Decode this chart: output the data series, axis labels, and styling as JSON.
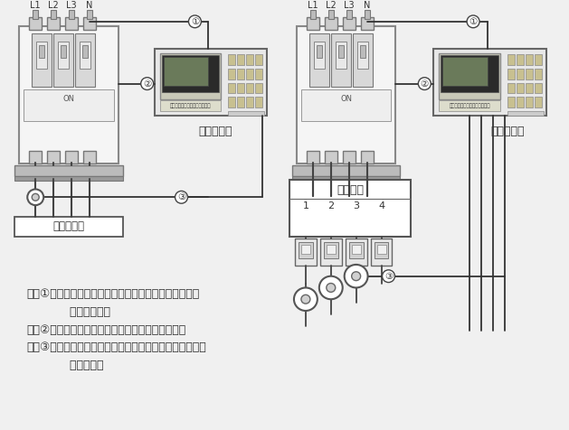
{
  "bg_color": "#f0f0f0",
  "fig_width": 6.29,
  "fig_height": 4.76,
  "text_color": "#333333",
  "line_color": "#444444",
  "description_lines": [
    "回路①：连接在配电进线端一条火线与零线之间，实现对",
    "            探测器的供电",
    "回路②：连接在分离脱才器的控制端，实现脱才控制",
    "回路③：互感器回路，将其连接在监控线路所通过的剩余电",
    "            流互感器上"
  ],
  "label_single": "单回路监控",
  "label_multi": "多回路监控",
  "label_protected": "受保护线路",
  "label_distribution": "支配电气",
  "label_L1L2L3N_left": "L1  L2  L3   N",
  "label_L1L2L3N_right": "L1  L2  L3   N"
}
